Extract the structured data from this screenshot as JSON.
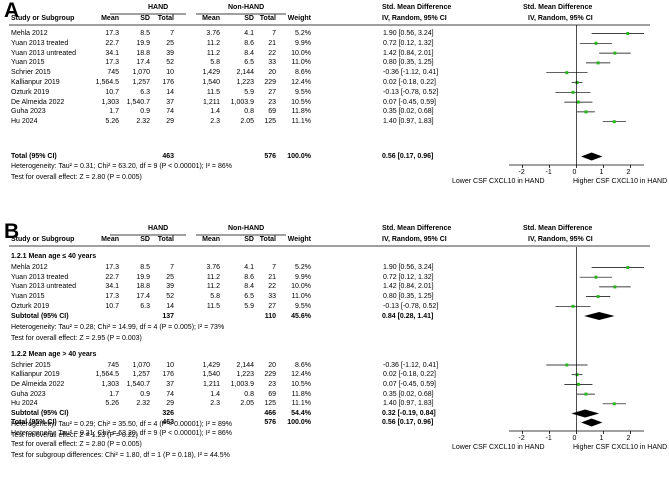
{
  "chart_data": [
    {
      "type": "forest",
      "panel_label": "A",
      "group_labels": {
        "hand": "HAND",
        "non_hand": "Non-HAND"
      },
      "columns": [
        "Study or Subgroup",
        "Mean",
        "SD",
        "Total",
        "Mean",
        "SD",
        "Total",
        "Weight",
        "IV, Random, 95% CI"
      ],
      "effect_header": [
        "Std. Mean Difference",
        "IV, Random, 95% CI"
      ],
      "studies": [
        {
          "name": "Mehla 2012",
          "hand": [
            "17.3",
            "8.5",
            "7"
          ],
          "nonhand": [
            "3.76",
            "4.1",
            "7"
          ],
          "weight": "5.2%",
          "ci_text": "1.90 [0.56, 3.24]",
          "smd": 1.9,
          "lo": 0.56,
          "hi": 3.24
        },
        {
          "name": "Yuan 2013 treated",
          "hand": [
            "22.7",
            "19.9",
            "25"
          ],
          "nonhand": [
            "11.2",
            "8.6",
            "21"
          ],
          "weight": "9.9%",
          "ci_text": "0.72 [0.12, 1.32]",
          "smd": 0.72,
          "lo": 0.12,
          "hi": 1.32
        },
        {
          "name": "Yuan 2013 untreated",
          "hand": [
            "34.1",
            "18.8",
            "39"
          ],
          "nonhand": [
            "11.2",
            "8.4",
            "22"
          ],
          "weight": "10.0%",
          "ci_text": "1.42 [0.84, 2.01]",
          "smd": 1.42,
          "lo": 0.84,
          "hi": 2.01
        },
        {
          "name": "Yuan 2015",
          "hand": [
            "17.3",
            "17.4",
            "52"
          ],
          "nonhand": [
            "5.8",
            "6.5",
            "33"
          ],
          "weight": "11.0%",
          "ci_text": "0.80 [0.35, 1.25]",
          "smd": 0.8,
          "lo": 0.35,
          "hi": 1.25
        },
        {
          "name": "Schrier 2015",
          "hand": [
            "745",
            "1,070",
            "10"
          ],
          "nonhand": [
            "1,429",
            "2,144",
            "20"
          ],
          "weight": "8.6%",
          "ci_text": "-0.36 [-1.12, 0.41]",
          "smd": -0.36,
          "lo": -1.12,
          "hi": 0.41
        },
        {
          "name": "Kallianpur 2019",
          "hand": [
            "1,564.5",
            "1,257",
            "176"
          ],
          "nonhand": [
            "1,540",
            "1,223",
            "229"
          ],
          "weight": "12.4%",
          "ci_text": "0.02 [-0.18, 0.22]",
          "smd": 0.02,
          "lo": -0.18,
          "hi": 0.22
        },
        {
          "name": "Ozturk 2019",
          "hand": [
            "10.7",
            "6.3",
            "14"
          ],
          "nonhand": [
            "11.5",
            "5.9",
            "27"
          ],
          "weight": "9.5%",
          "ci_text": "-0.13 [-0.78, 0.52]",
          "smd": -0.13,
          "lo": -0.78,
          "hi": 0.52
        },
        {
          "name": "De Almeida 2022",
          "hand": [
            "1,303",
            "1,540.7",
            "37"
          ],
          "nonhand": [
            "1,211",
            "1,003.9",
            "23"
          ],
          "weight": "10.5%",
          "ci_text": "0.07 [-0.45, 0.59]",
          "smd": 0.07,
          "lo": -0.45,
          "hi": 0.59
        },
        {
          "name": "Guha 2023",
          "hand": [
            "1.7",
            "0.9",
            "74"
          ],
          "nonhand": [
            "1.4",
            "0.8",
            "69"
          ],
          "weight": "11.8%",
          "ci_text": "0.35 [0.02, 0.68]",
          "smd": 0.35,
          "lo": 0.02,
          "hi": 0.68
        },
        {
          "name": "Hu 2024",
          "hand": [
            "5.26",
            "2.32",
            "29"
          ],
          "nonhand": [
            "2.3",
            "2.05",
            "125"
          ],
          "weight": "11.1%",
          "ci_text": "1.40 [0.97, 1.83]",
          "smd": 1.4,
          "lo": 0.97,
          "hi": 1.83
        }
      ],
      "total": {
        "name": "Total (95% CI)",
        "hand_total": "463",
        "nonhand_total": "576",
        "weight": "100.0%",
        "ci_text": "0.56 [0.17, 0.96]",
        "smd": 0.56,
        "lo": 0.17,
        "hi": 0.96
      },
      "heterogeneity": "Heterogeneity: Tau² = 0.31; Chi² = 63.20, df = 9 (P < 0.00001); I² = 86%",
      "overall_test": "Test for overall effect: Z = 2.80 (P = 0.005)",
      "x_ticks": [
        "-2",
        "-1",
        "0",
        "1",
        "2"
      ],
      "xlim": [
        -2.5,
        2.5
      ],
      "xlabel_left": "Lower CSF CXCL10 in HAND",
      "xlabel_right": "Higher CSF CXCL10 in HAND"
    },
    {
      "type": "forest",
      "panel_label": "B",
      "group_labels": {
        "hand": "HAND",
        "non_hand": "Non-HAND"
      },
      "columns": [
        "Study or Subgroup",
        "Mean",
        "SD",
        "Total",
        "Mean",
        "SD",
        "Total",
        "Weight",
        "IV, Random, 95% CI"
      ],
      "effect_header": [
        "Std. Mean Difference",
        "IV, Random, 95% CI"
      ],
      "subgroups": [
        {
          "title": "1.2.1 Mean age ≤ 40 years",
          "studies": [
            {
              "name": "Mehla 2012",
              "hand": [
                "17.3",
                "8.5",
                "7"
              ],
              "nonhand": [
                "3.76",
                "4.1",
                "7"
              ],
              "weight": "5.2%",
              "ci_text": "1.90 [0.56, 3.24]",
              "smd": 1.9,
              "lo": 0.56,
              "hi": 3.24
            },
            {
              "name": "Yuan 2013 treated",
              "hand": [
                "22.7",
                "19.9",
                "25"
              ],
              "nonhand": [
                "11.2",
                "8.6",
                "21"
              ],
              "weight": "9.9%",
              "ci_text": "0.72 [0.12, 1.32]",
              "smd": 0.72,
              "lo": 0.12,
              "hi": 1.32
            },
            {
              "name": "Yuan 2013 untreated",
              "hand": [
                "34.1",
                "18.8",
                "39"
              ],
              "nonhand": [
                "11.2",
                "8.4",
                "22"
              ],
              "weight": "10.0%",
              "ci_text": "1.42 [0.84, 2.01]",
              "smd": 1.42,
              "lo": 0.84,
              "hi": 2.01
            },
            {
              "name": "Yuan 2015",
              "hand": [
                "17.3",
                "17.4",
                "52"
              ],
              "nonhand": [
                "5.8",
                "6.5",
                "33"
              ],
              "weight": "11.0%",
              "ci_text": "0.80 [0.35, 1.25]",
              "smd": 0.8,
              "lo": 0.35,
              "hi": 1.25
            },
            {
              "name": "Ozturk 2019",
              "hand": [
                "10.7",
                "6.3",
                "14"
              ],
              "nonhand": [
                "11.5",
                "5.9",
                "27"
              ],
              "weight": "9.5%",
              "ci_text": "-0.13 [-0.78, 0.52]",
              "smd": -0.13,
              "lo": -0.78,
              "hi": 0.52
            }
          ],
          "subtotal": {
            "name": "Subtotal (95% CI)",
            "hand_total": "137",
            "nonhand_total": "110",
            "weight": "45.6%",
            "ci_text": "0.84 [0.28, 1.41]",
            "smd": 0.84,
            "lo": 0.28,
            "hi": 1.41
          },
          "heterogeneity": "Heterogeneity: Tau² = 0.28; Chi² = 14.99, df = 4 (P = 0.005); I² = 73%",
          "overall_test": "Test for overall effect: Z = 2.95 (P = 0.003)"
        },
        {
          "title": "1.2.2 Mean age > 40 years",
          "studies": [
            {
              "name": "Schrier 2015",
              "hand": [
                "745",
                "1,070",
                "10"
              ],
              "nonhand": [
                "1,429",
                "2,144",
                "20"
              ],
              "weight": "8.6%",
              "ci_text": "-0.36 [-1.12, 0.41]",
              "smd": -0.36,
              "lo": -1.12,
              "hi": 0.41
            },
            {
              "name": "Kallianpur 2019",
              "hand": [
                "1,564.5",
                "1,257",
                "176"
              ],
              "nonhand": [
                "1,540",
                "1,223",
                "229"
              ],
              "weight": "12.4%",
              "ci_text": "0.02 [-0.18, 0.22]",
              "smd": 0.02,
              "lo": -0.18,
              "hi": 0.22
            },
            {
              "name": "De Almeida 2022",
              "hand": [
                "1,303",
                "1,540.7",
                "37"
              ],
              "nonhand": [
                "1,211",
                "1,003.9",
                "23"
              ],
              "weight": "10.5%",
              "ci_text": "0.07 [-0.45, 0.59]",
              "smd": 0.07,
              "lo": -0.45,
              "hi": 0.59
            },
            {
              "name": "Guha 2023",
              "hand": [
                "1.7",
                "0.9",
                "74"
              ],
              "nonhand": [
                "1.4",
                "0.8",
                "69"
              ],
              "weight": "11.8%",
              "ci_text": "0.35 [0.02, 0.68]",
              "smd": 0.35,
              "lo": 0.02,
              "hi": 0.68
            },
            {
              "name": "Hu 2024",
              "hand": [
                "5.26",
                "2.32",
                "29"
              ],
              "nonhand": [
                "2.3",
                "2.05",
                "125"
              ],
              "weight": "11.1%",
              "ci_text": "1.40 [0.97, 1.83]",
              "smd": 1.4,
              "lo": 0.97,
              "hi": 1.83
            }
          ],
          "subtotal": {
            "name": "Subtotal (95% CI)",
            "hand_total": "326",
            "nonhand_total": "466",
            "weight": "54.4%",
            "ci_text": "0.32 [-0.19, 0.84]",
            "smd": 0.32,
            "lo": -0.19,
            "hi": 0.84
          },
          "heterogeneity": "Heterogeneity: Tau² = 0.29; Chi² = 35.50, df = 4 (P < 0.00001); I² = 89%",
          "overall_test": "Test for overall effect: Z = 1.23 (P = 0.22)"
        }
      ],
      "total": {
        "name": "Total (95% CI)",
        "hand_total": "463",
        "nonhand_total": "576",
        "weight": "100.0%",
        "ci_text": "0.56 [0.17, 0.96]",
        "smd": 0.56,
        "lo": 0.17,
        "hi": 0.96
      },
      "heterogeneity": "Heterogeneity: Tau² = 0.31; Chi² = 63.20, df = 9 (P < 0.00001); I² = 86%",
      "overall_test": "Test for overall effect: Z = 2.80 (P = 0.005)",
      "subgroup_test": "Test for subgroup differences: Chi² = 1.80, df = 1 (P = 0.18), I² = 44.5%",
      "x_ticks": [
        "-2",
        "-1",
        "0",
        "1",
        "2"
      ],
      "xlim": [
        -2.5,
        2.5
      ],
      "xlabel_left": "Lower CSF CXCL10 in HAND",
      "xlabel_right": "Higher CSF CXCL10 in HAND"
    }
  ],
  "colors": {
    "point": "#2bb51f",
    "diamond": "#000000",
    "line": "#000000",
    "separator": "#000000"
  }
}
